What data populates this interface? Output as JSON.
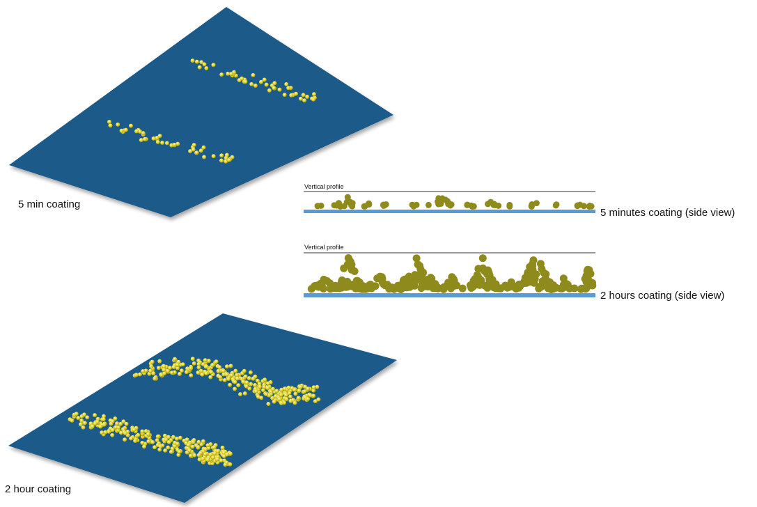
{
  "labels": {
    "coating_5min": "5 min coating",
    "coating_2hour": "2 hour coating",
    "side_5min": "5 minutes coating (side view)",
    "side_2hour": "2 hours coating (side view)",
    "vertical_profile_top": "Vertical profile",
    "vertical_profile_bottom": "Vertical profile"
  },
  "colors": {
    "plate": "#1f5a8a",
    "plate_shadow": "#c9c9c9",
    "particle": "#d8cc2e",
    "particle_dark": "#8f8a1c",
    "substrate_line": "#5b9bd5",
    "profile_line": "#333333"
  }
}
